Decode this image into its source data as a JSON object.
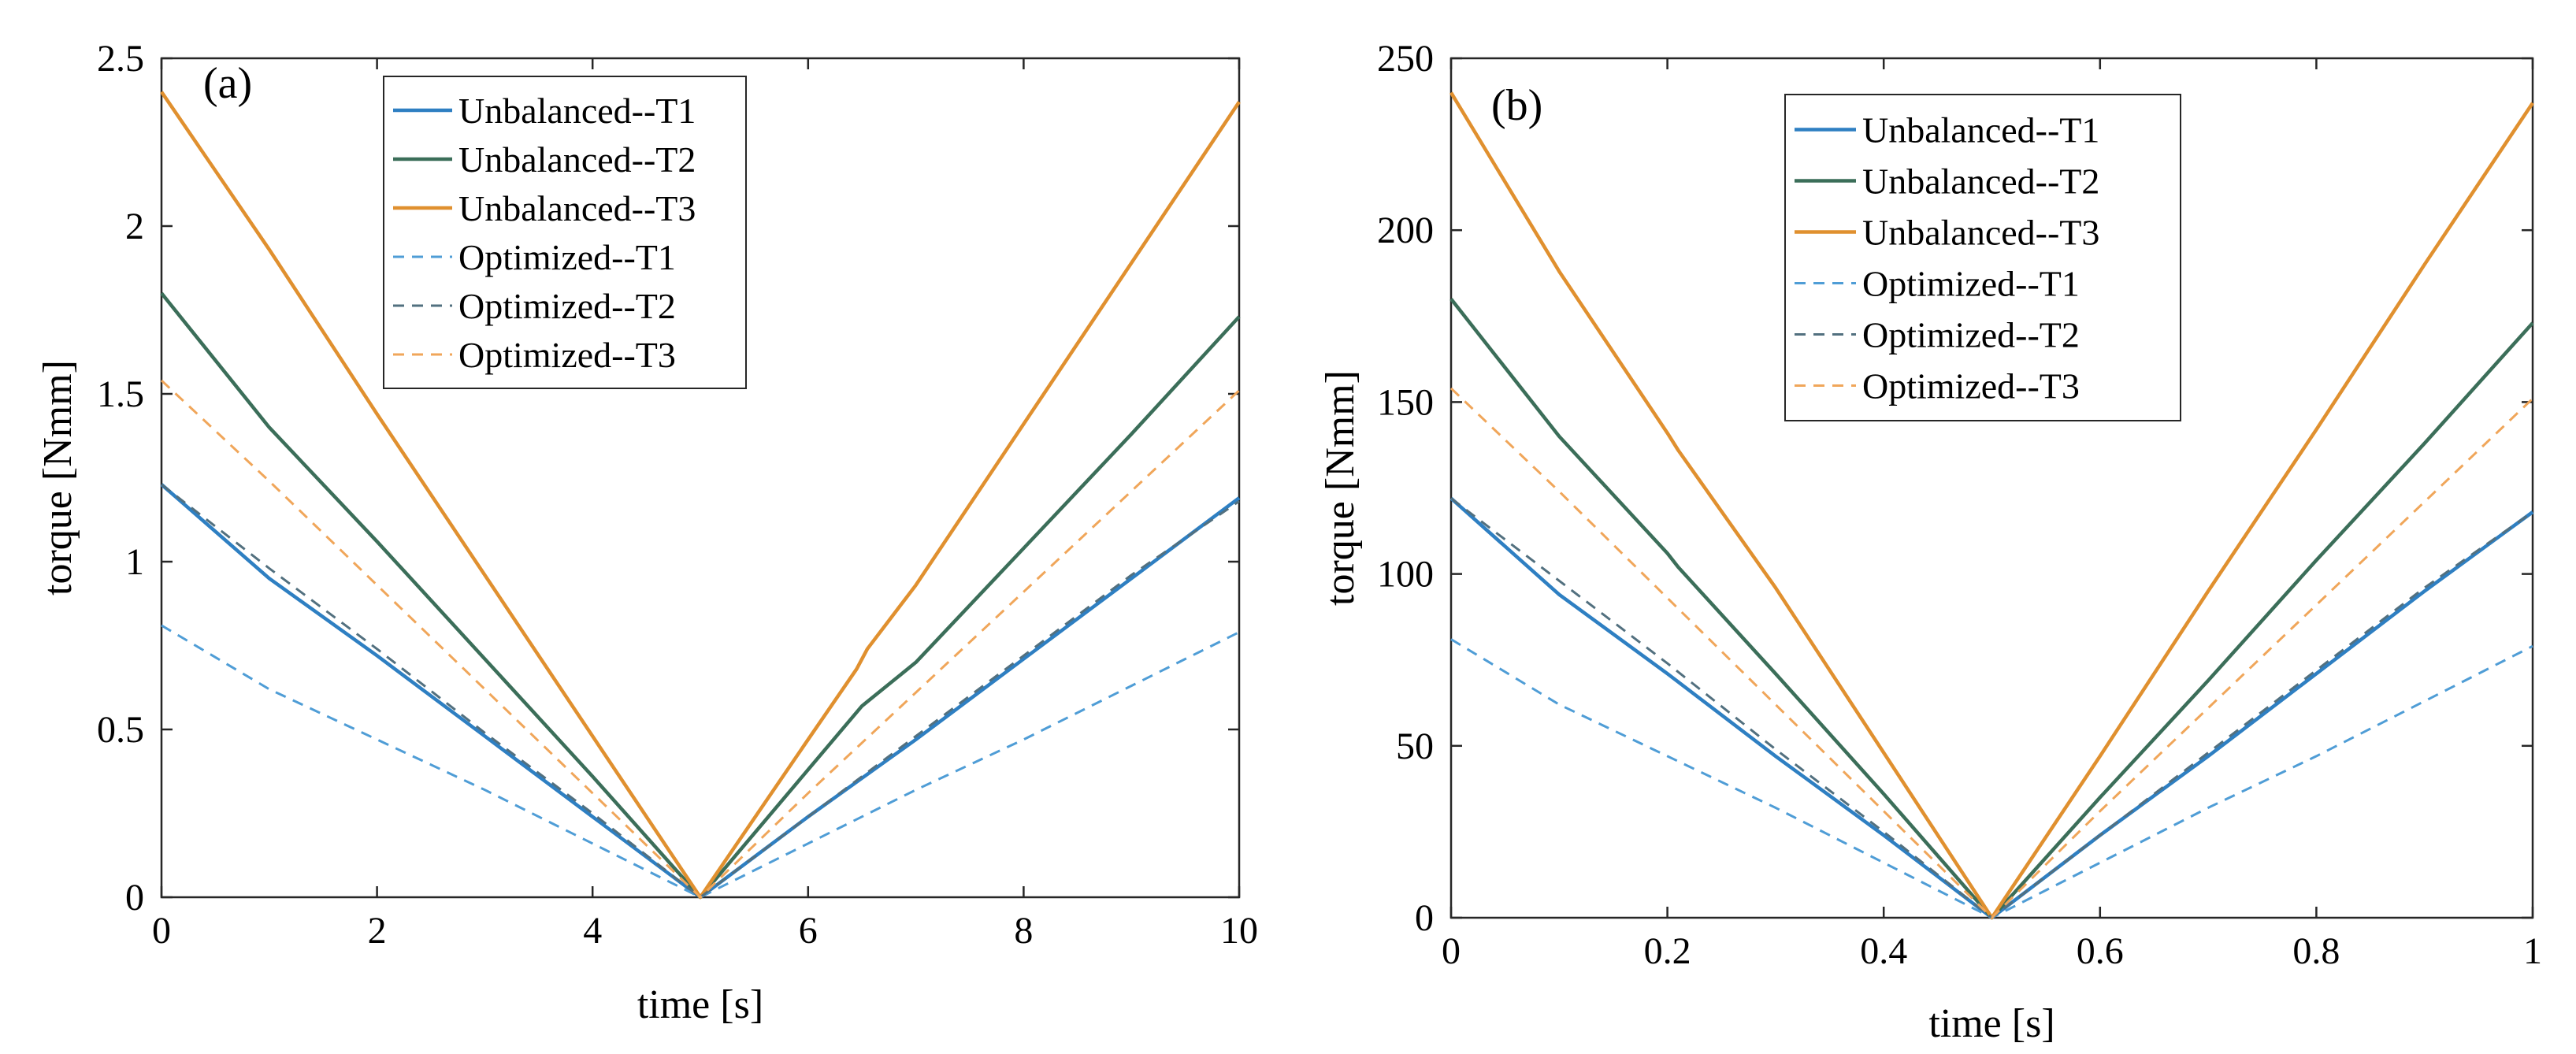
{
  "chart_data": [
    {
      "type": "line",
      "panel_label": "(a)",
      "xlabel": "time [s]",
      "ylabel": "torque [Nmm]",
      "xlim": [
        0,
        10
      ],
      "ylim": [
        0,
        2.5
      ],
      "xticks": [
        0,
        2,
        4,
        6,
        8,
        10
      ],
      "xtick_labels": [
        "0",
        "2",
        "4",
        "6",
        "8",
        "10"
      ],
      "yticks": [
        0,
        0.5,
        1,
        1.5,
        2,
        2.5
      ],
      "ytick_labels": [
        "0",
        "0.5",
        "1",
        "1.5",
        "2",
        "2.5"
      ],
      "legend_position": "top-center",
      "series": [
        {
          "name": "Unbalanced--T1",
          "style": "solid",
          "color": "#2e7fc2",
          "x": [
            0,
            1,
            2,
            3,
            4,
            5,
            5.5,
            6,
            7,
            8,
            9,
            10
          ],
          "y": [
            1.23,
            0.95,
            0.72,
            0.48,
            0.24,
            0.0,
            0.12,
            0.24,
            0.47,
            0.71,
            0.95,
            1.19
          ]
        },
        {
          "name": "Unbalanced--T2",
          "style": "solid",
          "color": "#3b6e59",
          "x": [
            0,
            1,
            2,
            3,
            4,
            5,
            6,
            6.5,
            7,
            8,
            9,
            10
          ],
          "y": [
            1.8,
            1.4,
            1.06,
            0.71,
            0.36,
            0.0,
            0.38,
            0.57,
            0.7,
            1.04,
            1.38,
            1.73
          ]
        },
        {
          "name": "Unbalanced--T3",
          "style": "solid",
          "color": "#e0902f",
          "x": [
            0,
            1,
            2,
            3,
            4,
            5,
            6,
            6.45,
            6.55,
            7,
            8,
            9,
            10
          ],
          "y": [
            2.4,
            1.93,
            1.44,
            0.96,
            0.48,
            0.0,
            0.47,
            0.68,
            0.74,
            0.93,
            1.41,
            1.89,
            2.37
          ]
        },
        {
          "name": "Optimized--T1",
          "style": "dashed",
          "color": "#4f9dd6",
          "x": [
            0,
            1,
            2,
            3,
            4,
            5,
            6,
            7,
            8,
            9,
            10
          ],
          "y": [
            0.81,
            0.62,
            0.47,
            0.32,
            0.16,
            0.0,
            0.16,
            0.32,
            0.47,
            0.63,
            0.79
          ]
        },
        {
          "name": "Optimized--T2",
          "style": "dashed",
          "color": "#52707f",
          "x": [
            0,
            1,
            2,
            3,
            4,
            5,
            6,
            7,
            8,
            9,
            10
          ],
          "y": [
            1.23,
            0.98,
            0.74,
            0.49,
            0.25,
            0.0,
            0.24,
            0.48,
            0.72,
            0.96,
            1.18
          ]
        },
        {
          "name": "Optimized--T3",
          "style": "dashed",
          "color": "#f0a65a",
          "x": [
            0,
            1,
            2,
            3,
            4,
            5,
            6,
            7,
            8,
            9,
            10
          ],
          "y": [
            1.54,
            1.24,
            0.93,
            0.62,
            0.31,
            0.0,
            0.31,
            0.61,
            0.91,
            1.21,
            1.51
          ]
        }
      ]
    },
    {
      "type": "line",
      "panel_label": "(b)",
      "xlabel": "time [s]",
      "ylabel": "torque [Nmm]",
      "xlim": [
        0,
        1
      ],
      "ylim": [
        0,
        250
      ],
      "xticks": [
        0,
        0.2,
        0.4,
        0.6,
        0.8,
        1
      ],
      "xtick_labels": [
        "0",
        "0.2",
        "0.4",
        "0.6",
        "0.8",
        "1"
      ],
      "yticks": [
        0,
        50,
        100,
        150,
        200,
        250
      ],
      "ytick_labels": [
        "0",
        "50",
        "100",
        "150",
        "200",
        "250"
      ],
      "legend_position": "top-center",
      "series": [
        {
          "name": "Unbalanced--T1",
          "style": "solid",
          "color": "#2e7fc2",
          "x": [
            0,
            0.1,
            0.2,
            0.3,
            0.4,
            0.5,
            0.6,
            0.7,
            0.8,
            0.9,
            1.0
          ],
          "y": [
            122,
            94,
            71,
            47,
            24,
            0,
            24,
            47,
            71,
            95,
            118
          ]
        },
        {
          "name": "Unbalanced--T2",
          "style": "solid",
          "color": "#3b6e59",
          "x": [
            0,
            0.1,
            0.2,
            0.21,
            0.3,
            0.4,
            0.5,
            0.6,
            0.7,
            0.8,
            0.9,
            1.0
          ],
          "y": [
            180,
            140,
            106,
            102,
            71,
            36,
            0,
            35,
            69,
            104,
            138,
            173
          ]
        },
        {
          "name": "Unbalanced--T3",
          "style": "solid",
          "color": "#e0902f",
          "x": [
            0,
            0.1,
            0.2,
            0.21,
            0.3,
            0.4,
            0.5,
            0.6,
            0.7,
            0.8,
            0.9,
            1.0
          ],
          "y": [
            240,
            188,
            141,
            136,
            96,
            48,
            0,
            47,
            95,
            142,
            190,
            237
          ]
        },
        {
          "name": "Optimized--T1",
          "style": "dashed",
          "color": "#4f9dd6",
          "x": [
            0,
            0.1,
            0.2,
            0.3,
            0.4,
            0.5,
            0.6,
            0.7,
            0.8,
            0.9,
            1.0
          ],
          "y": [
            81,
            62,
            47,
            32,
            16,
            0,
            16,
            32,
            47,
            63,
            79
          ]
        },
        {
          "name": "Optimized--T2",
          "style": "dashed",
          "color": "#52707f",
          "x": [
            0,
            0.1,
            0.2,
            0.3,
            0.4,
            0.5,
            0.6,
            0.7,
            0.8,
            0.9,
            1.0
          ],
          "y": [
            122,
            98,
            74,
            49,
            25,
            0,
            24,
            48,
            72,
            96,
            118
          ]
        },
        {
          "name": "Optimized--T3",
          "style": "dashed",
          "color": "#f0a65a",
          "x": [
            0,
            0.1,
            0.2,
            0.3,
            0.4,
            0.5,
            0.6,
            0.7,
            0.8,
            0.9,
            1.0
          ],
          "y": [
            154,
            124,
            93,
            62,
            31,
            0,
            31,
            61,
            91,
            121,
            151
          ]
        }
      ]
    }
  ]
}
